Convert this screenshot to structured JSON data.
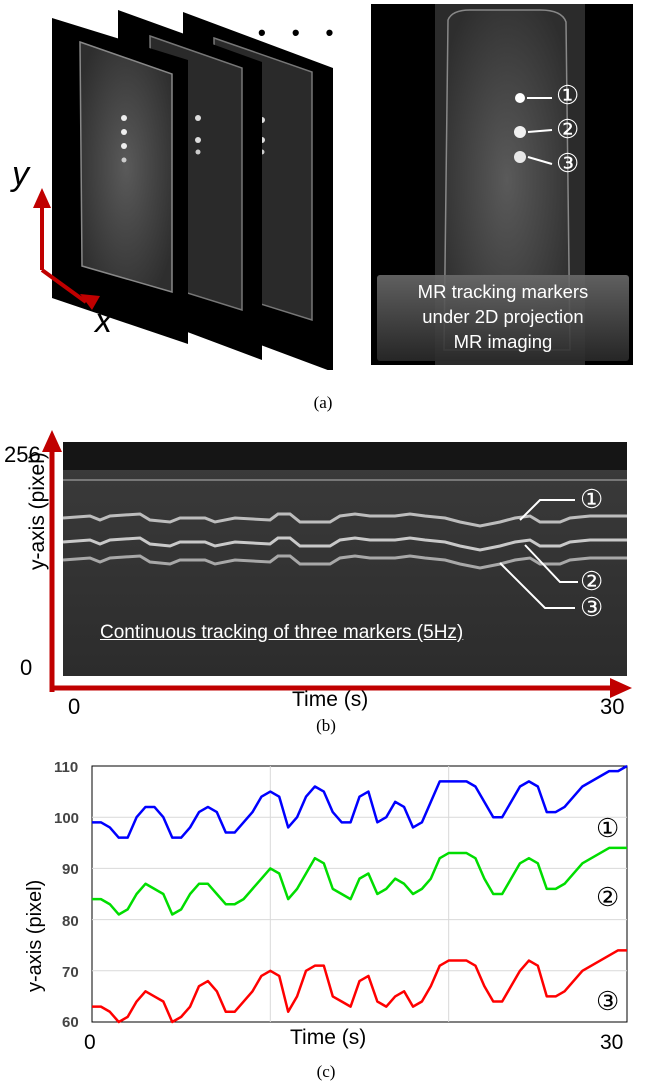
{
  "panel_a": {
    "axis_y": "y",
    "axis_x": "x",
    "ellipsis": "• • •",
    "marker_1": "①",
    "marker_2": "②",
    "marker_3": "③",
    "caption_box_line1": "MR tracking markers",
    "caption_box_line2": "under 2D projection",
    "caption_box_line3": "MR imaging",
    "label": "(a)",
    "colors": {
      "axis_arrow": "#c00000",
      "background": "#000000"
    }
  },
  "panel_b": {
    "y_top_label": "256",
    "y_bottom_label": "0",
    "y_axis_label": "y-axis (pixel)",
    "x_left_label": "0",
    "x_right_label": "30",
    "x_axis_label": "Time (s)",
    "inner_caption": "Continuous tracking of three markers (5Hz)",
    "marker_1": "①",
    "marker_2": "②",
    "marker_3": "③",
    "label": "(b)",
    "colors": {
      "axis_arrow": "#c00000"
    }
  },
  "panel_c": {
    "ytick_labels": [
      "110",
      "100",
      "90",
      "80",
      "70",
      "60"
    ],
    "xtick_left": "0",
    "xtick_right": "30",
    "xlabel": "Time (s)",
    "ylabel": "y-axis (pixel)",
    "marker_1": "①",
    "marker_2": "②",
    "marker_3": "③",
    "label": "(c)"
  },
  "chart_data": {
    "type": "line",
    "xlabel": "Time (s)",
    "ylabel": "y-axis (pixel)",
    "xlim": [
      0,
      30
    ],
    "ylim": [
      60,
      110
    ],
    "grid": true,
    "x": [
      0,
      0.5,
      1,
      1.5,
      2,
      2.5,
      3,
      3.5,
      4,
      4.5,
      5,
      5.5,
      6,
      6.5,
      7,
      7.5,
      8,
      8.5,
      9,
      9.5,
      10,
      10.5,
      11,
      11.5,
      12,
      12.5,
      13,
      13.5,
      14,
      14.5,
      15,
      15.5,
      16,
      16.5,
      17,
      17.5,
      18,
      18.5,
      19,
      19.5,
      20,
      20.5,
      21,
      21.5,
      22,
      22.5,
      23,
      23.5,
      24,
      24.5,
      25,
      25.5,
      26,
      26.5,
      27,
      27.5,
      28,
      28.5,
      29,
      29.5,
      30
    ],
    "series": [
      {
        "name": "①",
        "color": "#0000ff",
        "values": [
          99,
          99,
          98,
          96,
          96,
          100,
          102,
          102,
          100,
          96,
          96,
          98,
          101,
          102,
          101,
          97,
          97,
          99,
          101,
          104,
          105,
          104,
          98,
          100,
          104,
          106,
          105,
          101,
          99,
          99,
          104,
          105,
          99,
          100,
          103,
          102,
          98,
          99,
          103,
          107,
          107,
          107,
          107,
          106,
          103,
          100,
          100,
          103,
          106,
          107,
          106,
          101,
          101,
          102,
          104,
          106,
          107,
          108,
          109,
          109,
          110
        ]
      },
      {
        "name": "②",
        "color": "#00dd00",
        "values": [
          84,
          84,
          83,
          81,
          82,
          85,
          87,
          86,
          85,
          81,
          82,
          85,
          87,
          87,
          85,
          83,
          83,
          84,
          86,
          88,
          90,
          89,
          84,
          86,
          89,
          92,
          91,
          86,
          85,
          84,
          88,
          89,
          85,
          86,
          88,
          87,
          85,
          86,
          88,
          92,
          93,
          93,
          93,
          92,
          88,
          85,
          85,
          88,
          91,
          92,
          91,
          86,
          86,
          87,
          89,
          91,
          92,
          93,
          94,
          94,
          94
        ]
      },
      {
        "name": "③",
        "color": "#ff0000",
        "values": [
          63,
          63,
          62,
          60,
          61,
          64,
          66,
          65,
          64,
          60,
          61,
          63,
          67,
          68,
          66,
          62,
          62,
          64,
          66,
          69,
          70,
          69,
          62,
          65,
          70,
          71,
          71,
          65,
          64,
          63,
          68,
          69,
          64,
          63,
          65,
          66,
          63,
          64,
          67,
          71,
          72,
          72,
          72,
          71,
          67,
          64,
          64,
          67,
          70,
          72,
          71,
          65,
          65,
          66,
          68,
          70,
          71,
          72,
          73,
          74,
          74
        ]
      }
    ]
  }
}
